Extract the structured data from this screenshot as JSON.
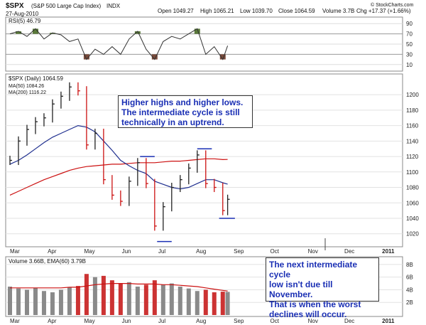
{
  "header": {
    "symbol": "$SPX",
    "name": "(S&P 500 Large Cap Index)",
    "exchange": "INDX",
    "date": "27-Aug-2010",
    "open": "Open 1049.27",
    "high": "High 1065.21",
    "low": "Low 1039.70",
    "close": "Close 1064.59",
    "volume": "Volume 3.7B",
    "chg": "Chg +17.37 (+1.66%)",
    "credit": "© StockCharts.com"
  },
  "rsi": {
    "label": "RSI(5) 46.79",
    "ticks": [
      "90",
      "70",
      "50",
      "30",
      "10"
    ],
    "levels": [
      90,
      70,
      50,
      30,
      10
    ]
  },
  "price": {
    "title": "$SPX (Daily) 1064.59",
    "ma50_label": "MA(50) 1084.26",
    "ma200_label": "MA(200) 1116.22",
    "ma50_color": "#1f2f8f",
    "ma200_color": "#cc1111",
    "ticks": [
      "1200",
      "1180",
      "1160",
      "1140",
      "1120",
      "1100",
      "1080",
      "1060",
      "1040",
      "1020"
    ],
    "tick_values": [
      1200,
      1180,
      1160,
      1140,
      1120,
      1100,
      1080,
      1060,
      1040,
      1020
    ]
  },
  "volume": {
    "label": "Volume 3.66B, EMA(60) 3.79B",
    "ticks": [
      "8B",
      "6B",
      "4B",
      "2B"
    ]
  },
  "months": [
    "Mar",
    "Apr",
    "May",
    "Jun",
    "Jul",
    "Aug",
    "Sep",
    "Oct",
    "Nov",
    "Dec",
    "2011"
  ],
  "annotations": {
    "top": [
      "Higher highs and higher lows.",
      "The intermediate cycle is still",
      "technically in an uptrend."
    ],
    "bottom": [
      "The next intermediate cycle",
      "low isn't due till November.",
      "That is when the worst",
      "declines will occur."
    ]
  },
  "chart_data": {
    "type": "line",
    "title": "$SPX (Daily) 1064.59",
    "x": [
      "2010-03-01",
      "2010-03-08",
      "2010-03-15",
      "2010-03-22",
      "2010-03-29",
      "2010-04-05",
      "2010-04-12",
      "2010-04-19",
      "2010-04-26",
      "2010-05-03",
      "2010-05-10",
      "2010-05-17",
      "2010-05-24",
      "2010-05-31",
      "2010-06-07",
      "2010-06-14",
      "2010-06-21",
      "2010-06-28",
      "2010-07-05",
      "2010-07-12",
      "2010-07-19",
      "2010-07-26",
      "2010-08-02",
      "2010-08-09",
      "2010-08-16",
      "2010-08-23",
      "2010-08-27"
    ],
    "series": [
      {
        "name": "$SPX",
        "values": [
          1115,
          1140,
          1155,
          1165,
          1170,
          1188,
          1198,
          1210,
          1205,
          1135,
          1150,
          1090,
          1070,
          1062,
          1088,
          1112,
          1085,
          1030,
          1055,
          1080,
          1090,
          1105,
          1122,
          1085,
          1080,
          1050,
          1064.59
        ]
      },
      {
        "name": "MA(50)",
        "values": [
          1110,
          1115,
          1122,
          1130,
          1138,
          1145,
          1150,
          1155,
          1160,
          1158,
          1152,
          1140,
          1128,
          1115,
          1108,
          1102,
          1098,
          1088,
          1084,
          1080,
          1078,
          1080,
          1085,
          1090,
          1090,
          1086,
          1084.26
        ]
      },
      {
        "name": "MA(200)",
        "values": [
          1070,
          1075,
          1080,
          1085,
          1090,
          1094,
          1098,
          1102,
          1105,
          1107,
          1108,
          1109,
          1110,
          1110,
          1111,
          1112,
          1112,
          1112,
          1113,
          1114,
          1114,
          1115,
          1116,
          1117,
          1117,
          1116,
          1116.22
        ]
      }
    ],
    "ylim": [
      1005,
      1225
    ],
    "ylabel": "",
    "xlabel": "",
    "grid": true,
    "rsi_values": [
      70,
      75,
      65,
      80,
      60,
      72,
      68,
      55,
      60,
      20,
      40,
      30,
      45,
      30,
      60,
      75,
      40,
      20,
      55,
      65,
      60,
      70,
      80,
      30,
      45,
      20,
      46.79
    ],
    "volume_values": [
      4.5,
      4.2,
      4.0,
      4.3,
      3.8,
      3.6,
      4.0,
      4.4,
      4.6,
      6.5,
      6.0,
      6.2,
      5.5,
      5.0,
      5.2,
      4.5,
      4.8,
      5.5,
      4.8,
      5.0,
      4.5,
      4.2,
      3.8,
      4.0,
      3.6,
      3.7,
      3.66
    ],
    "volume_ema": [
      4.3,
      4.3,
      4.3,
      4.3,
      4.3,
      4.3,
      4.3,
      4.4,
      4.4,
      4.6,
      4.8,
      4.9,
      5.0,
      5.0,
      5.0,
      4.9,
      4.9,
      4.9,
      4.8,
      4.8,
      4.7,
      4.6,
      4.5,
      4.3,
      4.1,
      3.9,
      3.79
    ]
  }
}
